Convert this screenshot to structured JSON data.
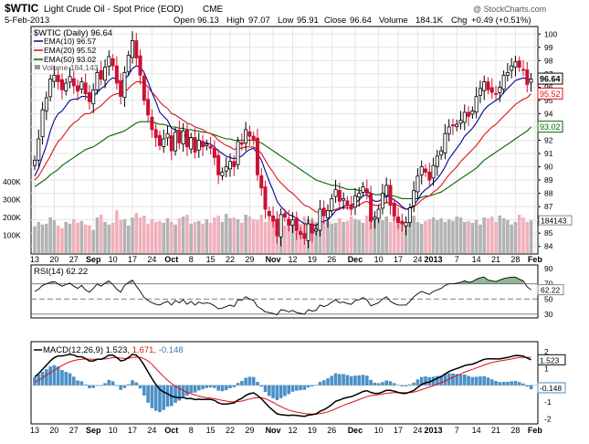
{
  "header": {
    "symbol": "$WTIC",
    "name": "Light Crude Oil - Spot Price (EOD)",
    "exchange": "CME",
    "date": "5-Feb-2013",
    "open_label": "Open",
    "open": "96.13",
    "high_label": "High",
    "high": "97.07",
    "low_label": "Low",
    "low": "95.91",
    "close_label": "Close",
    "close": "96.64",
    "volume_label": "Volume",
    "volume": "184.1K",
    "chg_label": "Chg",
    "chg": "+0.49 (+0.51%)",
    "watermark": "@ StockCharts.com"
  },
  "legend": {
    "main": "$WTIC (Daily) 96.64",
    "ema10": "EMA(10) 96.57",
    "ema20": "EMA(20) 95.52",
    "ema50": "EMA(50) 93.02",
    "volume": "Volume 184,143"
  },
  "colors": {
    "up": "#000000",
    "down": "#cc1133",
    "ema10": "#000099",
    "ema20": "#dd1111",
    "ema50": "#006600",
    "vol_up": "#b3b3b3",
    "vol_down": "#f0b0bb",
    "macd": "#000000",
    "signal": "#dd1111",
    "hist": "#4a90c8",
    "rsi": "#000000"
  },
  "chart_data": [
    {
      "type": "candlestick",
      "title": "$WTIC (Daily) 96.64",
      "ylim": [
        83.5,
        100.5
      ],
      "y_ticks": [
        "84",
        "85",
        "86",
        "87",
        "88",
        "89",
        "90",
        "91",
        "92",
        "93",
        "94",
        "95",
        "96",
        "97",
        "98",
        "99",
        "100"
      ],
      "price_tags": [
        "96.64",
        "95.52",
        "93.02"
      ],
      "x_ticks": [
        "13",
        "20",
        "27",
        "Sep",
        "10",
        "17",
        "24",
        "Oct",
        "8",
        "15",
        "22",
        "29",
        "Nov",
        "12",
        "19",
        "26",
        "Dec",
        "10",
        "17",
        "24",
        "2013",
        "7",
        "14",
        "21",
        "28",
        "Feb"
      ],
      "volume_ticks": [
        "400K",
        "300K",
        "200K",
        "100K"
      ],
      "volume_tag": "184143",
      "close": [
        90.5,
        92.1,
        94.3,
        95.2,
        96.6,
        96.9,
        96.4,
        95.8,
        96.3,
        96.8,
        96.1,
        95.7,
        96.4,
        95.5,
        94.9,
        95.8,
        97.1,
        96.6,
        97.5,
        98.3,
        97.6,
        96.3,
        95.3,
        97.1,
        98.4,
        99.5,
        98.2,
        96.9,
        95.0,
        93.9,
        92.8,
        92.2,
        91.6,
        92.1,
        92.5,
        91.2,
        92.6,
        91.8,
        92.7,
        91.5,
        92.2,
        91.1,
        92.0,
        91.5,
        91.7,
        91.4,
        90.7,
        89.4,
        89.6,
        90.0,
        90.4,
        90.0,
        91.9,
        91.7,
        92.8,
        92.3,
        92.0,
        89.4,
        88.4,
        86.8,
        86.3,
        85.9,
        84.8,
        86.4,
        86.2,
        85.6,
        86.0,
        85.2,
        84.9,
        84.6,
        85.7,
        85.0,
        85.3,
        86.8,
        86.3,
        86.7,
        87.6,
        88.3,
        87.4,
        87.6,
        87.1,
        86.8,
        87.8,
        88.0,
        88.5,
        88.0,
        85.9,
        86.2,
        86.8,
        88.0,
        88.6,
        87.1,
        86.3,
        85.8,
        85.7,
        85.8,
        86.9,
        88.2,
        89.3,
        90.0,
        89.6,
        89.0,
        90.1,
        90.8,
        91.2,
        92.5,
        93.0,
        93.1,
        93.2,
        93.5,
        94.1,
        93.8,
        94.2,
        95.3,
        95.9,
        96.4,
        95.8,
        95.6,
        95.5,
        96.0,
        96.9,
        97.1,
        97.6,
        97.9,
        97.5,
        97.3,
        96.2,
        96.6
      ],
      "volume_k": [
        150,
        175,
        160,
        165,
        200,
        185,
        155,
        140,
        175,
        165,
        190,
        170,
        180,
        160,
        155,
        130,
        200,
        215,
        175,
        160,
        170,
        240,
        185,
        190,
        155,
        200,
        225,
        200,
        210,
        165,
        190,
        175,
        180,
        170,
        195,
        175,
        160,
        195,
        205,
        215,
        165,
        175,
        180,
        165,
        190,
        170,
        200,
        210,
        175,
        220,
        195,
        200,
        190,
        170,
        215,
        205,
        190,
        185,
        215,
        175,
        180,
        185,
        175,
        165,
        155,
        200,
        185,
        170,
        165,
        205,
        190,
        185,
        175,
        185,
        175,
        180,
        165,
        170,
        195,
        175,
        180,
        205,
        190,
        185,
        170,
        210,
        195,
        200,
        190,
        185,
        205,
        175,
        215,
        180,
        185,
        170,
        190,
        210,
        175,
        165,
        180,
        190,
        200,
        185,
        195,
        175,
        190,
        180,
        205,
        200,
        175,
        180,
        170,
        185,
        160,
        200,
        195,
        205,
        175,
        210,
        195,
        185,
        160,
        175,
        215,
        200,
        175,
        184
      ],
      "ema10": [
        89.3,
        89.9,
        90.8,
        91.6,
        92.7,
        93.5,
        94.0,
        94.2,
        94.6,
        95.0,
        95.1,
        95.1,
        95.3,
        95.3,
        95.2,
        95.3,
        95.6,
        95.9,
        96.1,
        96.5,
        96.7,
        96.6,
        96.4,
        96.6,
        96.9,
        97.4,
        97.6,
        97.5,
        97.1,
        96.4,
        95.6,
        94.9,
        94.1,
        93.8,
        93.5,
        92.9,
        92.8,
        92.6,
        92.5,
        92.2,
        92.2,
        92.0,
        91.9,
        91.8,
        91.8,
        91.7,
        91.5,
        91.2,
        91.0,
        90.8,
        90.7,
        90.6,
        90.7,
        90.8,
        91.1,
        91.3,
        91.4,
        91.0,
        90.5,
        89.7,
        88.9,
        88.2,
        87.4,
        87.0,
        86.7,
        86.4,
        86.3,
        86.1,
        85.9,
        85.7,
        85.7,
        85.6,
        85.6,
        85.8,
        85.9,
        86.0,
        86.3,
        86.7,
        86.8,
        87.0,
        87.1,
        87.1,
        87.3,
        87.5,
        87.8,
        87.9,
        87.6,
        87.4,
        87.4,
        87.6,
        87.8,
        87.7,
        87.5,
        87.3,
        87.0,
        86.8,
        86.9,
        87.1,
        87.5,
        88.0,
        88.3,
        88.5,
        88.8,
        89.1,
        89.5,
        90.0,
        90.6,
        91.0,
        91.4,
        91.8,
        92.3,
        92.6,
        92.9,
        93.3,
        93.8,
        94.3,
        94.6,
        94.8,
        95.0,
        95.2,
        95.6,
        95.9,
        96.2,
        96.5,
        96.6,
        96.7,
        96.6,
        96.6
      ],
      "ema20": [
        89.0,
        89.3,
        89.8,
        90.3,
        90.8,
        91.4,
        91.9,
        92.2,
        92.6,
        93.0,
        93.3,
        93.5,
        93.8,
        94.0,
        94.0,
        94.2,
        94.4,
        94.6,
        94.9,
        95.2,
        95.4,
        95.5,
        95.5,
        95.6,
        95.9,
        96.2,
        96.4,
        96.4,
        96.3,
        96.0,
        95.6,
        95.3,
        94.9,
        94.6,
        94.4,
        94.0,
        93.9,
        93.7,
        93.5,
        93.3,
        93.2,
        93.0,
        92.9,
        92.8,
        92.6,
        92.5,
        92.3,
        92.0,
        91.8,
        91.6,
        91.5,
        91.3,
        91.4,
        91.4,
        91.5,
        91.5,
        91.5,
        91.3,
        91.0,
        90.5,
        90.0,
        89.6,
        89.1,
        88.8,
        88.5,
        88.2,
        88.0,
        87.7,
        87.4,
        87.1,
        87.0,
        86.8,
        86.6,
        86.6,
        86.6,
        86.6,
        86.7,
        86.8,
        86.9,
        86.9,
        86.9,
        86.9,
        87.0,
        87.1,
        87.3,
        87.4,
        87.2,
        87.1,
        87.1,
        87.2,
        87.3,
        87.3,
        87.2,
        87.1,
        86.9,
        86.8,
        86.8,
        87.0,
        87.2,
        87.5,
        87.7,
        87.8,
        88.1,
        88.3,
        88.6,
        89.0,
        89.4,
        89.7,
        90.0,
        90.4,
        90.7,
        91.0,
        91.3,
        91.6,
        92.0,
        92.4,
        92.7,
        93.0,
        93.2,
        93.5,
        93.8,
        94.1,
        94.4,
        94.7,
        94.9,
        95.1,
        95.2,
        95.5
      ],
      "ema50": [
        88.5,
        88.7,
        88.9,
        89.1,
        89.4,
        89.6,
        89.8,
        90.1,
        90.3,
        90.5,
        90.7,
        90.9,
        91.1,
        91.3,
        91.4,
        91.5,
        91.7,
        91.9,
        92.1,
        92.3,
        92.4,
        92.5,
        92.6,
        92.7,
        92.9,
        93.1,
        93.3,
        93.4,
        93.4,
        93.4,
        93.4,
        93.3,
        93.2,
        93.2,
        93.1,
        93.0,
        93.0,
        92.9,
        92.9,
        92.8,
        92.8,
        92.7,
        92.7,
        92.6,
        92.6,
        92.5,
        92.4,
        92.3,
        92.2,
        92.1,
        92.1,
        92.0,
        92.0,
        92.0,
        92.0,
        92.0,
        92.0,
        91.9,
        91.8,
        91.6,
        91.4,
        91.2,
        91.0,
        90.8,
        90.6,
        90.4,
        90.2,
        90.0,
        89.8,
        89.6,
        89.4,
        89.2,
        89.0,
        88.9,
        88.8,
        88.7,
        88.6,
        88.6,
        88.5,
        88.4,
        88.3,
        88.3,
        88.3,
        88.2,
        88.2,
        88.2,
        88.0,
        87.9,
        87.9,
        87.9,
        87.9,
        87.8,
        87.8,
        87.7,
        87.6,
        87.6,
        87.6,
        87.6,
        87.6,
        87.7,
        87.8,
        87.8,
        87.9,
        88.0,
        88.1,
        88.3,
        88.5,
        88.7,
        88.9,
        89.1,
        89.3,
        89.5,
        89.7,
        89.9,
        90.2,
        90.5,
        90.7,
        90.9,
        91.1,
        91.3,
        91.5,
        91.7,
        91.9,
        92.1,
        92.3,
        92.5,
        92.7,
        93.0
      ]
    },
    {
      "type": "line",
      "title": "RSI(14) 62.22",
      "ylim": [
        25,
        95
      ],
      "y_ticks": [
        "90",
        "70",
        "50",
        "30"
      ],
      "value_tag": "62.22",
      "rsi": [
        60,
        63,
        68,
        70,
        72,
        73,
        70,
        67,
        69,
        71,
        67,
        64,
        68,
        62,
        59,
        64,
        70,
        67,
        71,
        74,
        69,
        63,
        59,
        68,
        72,
        75,
        67,
        60,
        52,
        48,
        45,
        43,
        42,
        45,
        47,
        42,
        48,
        45,
        49,
        43,
        47,
        42,
        46,
        44,
        45,
        44,
        41,
        37,
        38,
        40,
        42,
        40,
        49,
        48,
        53,
        50,
        48,
        40,
        37,
        33,
        32,
        31,
        29,
        36,
        35,
        33,
        35,
        32,
        31,
        30,
        36,
        34,
        35,
        42,
        40,
        42,
        46,
        49,
        45,
        46,
        44,
        43,
        48,
        49,
        52,
        49,
        41,
        43,
        45,
        50,
        53,
        47,
        44,
        42,
        42,
        42,
        47,
        53,
        57,
        60,
        58,
        56,
        60,
        62,
        64,
        68,
        70,
        70,
        71,
        72,
        74,
        72,
        73,
        76,
        78,
        79,
        75,
        74,
        73,
        75,
        77,
        78,
        79,
        79,
        76,
        74,
        66,
        62
      ]
    },
    {
      "type": "line",
      "title": "MACD(12,26,9) 1.523, 1.671, -0.148",
      "ylim": [
        -2.3,
        2.6
      ],
      "y_ticks": [
        "2",
        "1",
        "0",
        "-1",
        "-2"
      ],
      "value_tags": [
        "1.523",
        "-0.148"
      ],
      "macd": [
        0.5,
        0.7,
        0.95,
        1.2,
        1.45,
        1.65,
        1.75,
        1.75,
        1.8,
        1.85,
        1.8,
        1.7,
        1.7,
        1.6,
        1.45,
        1.45,
        1.55,
        1.55,
        1.65,
        1.8,
        1.8,
        1.65,
        1.45,
        1.5,
        1.65,
        1.85,
        1.8,
        1.55,
        1.2,
        0.8,
        0.4,
        0.05,
        -0.25,
        -0.4,
        -0.5,
        -0.65,
        -0.7,
        -0.75,
        -0.72,
        -0.8,
        -0.78,
        -0.85,
        -0.83,
        -0.85,
        -0.83,
        -0.84,
        -0.9,
        -1.05,
        -1.12,
        -1.12,
        -1.08,
        -1.05,
        -0.88,
        -0.78,
        -0.6,
        -0.5,
        -0.45,
        -0.6,
        -0.8,
        -1.05,
        -1.3,
        -1.5,
        -1.7,
        -1.75,
        -1.78,
        -1.8,
        -1.78,
        -1.8,
        -1.82,
        -1.85,
        -1.78,
        -1.75,
        -1.7,
        -1.55,
        -1.45,
        -1.32,
        -1.15,
        -0.95,
        -0.88,
        -0.78,
        -0.72,
        -0.68,
        -0.58,
        -0.48,
        -0.37,
        -0.32,
        -0.42,
        -0.48,
        -0.48,
        -0.4,
        -0.3,
        -0.3,
        -0.35,
        -0.42,
        -0.48,
        -0.48,
        -0.4,
        -0.3,
        -0.12,
        0.05,
        0.15,
        0.2,
        0.3,
        0.42,
        0.52,
        0.68,
        0.82,
        0.92,
        1.0,
        1.08,
        1.18,
        1.22,
        1.26,
        1.35,
        1.45,
        1.55,
        1.58,
        1.58,
        1.57,
        1.57,
        1.62,
        1.66,
        1.72,
        1.78,
        1.77,
        1.74,
        1.62,
        1.52
      ],
      "signal": [
        0.2,
        0.3,
        0.45,
        0.6,
        0.75,
        0.9,
        1.05,
        1.18,
        1.3,
        1.4,
        1.48,
        1.52,
        1.55,
        1.57,
        1.56,
        1.55,
        1.55,
        1.55,
        1.57,
        1.6,
        1.65,
        1.65,
        1.62,
        1.6,
        1.61,
        1.66,
        1.69,
        1.67,
        1.58,
        1.45,
        1.25,
        1.0,
        0.75,
        0.52,
        0.3,
        0.12,
        -0.05,
        -0.18,
        -0.3,
        -0.42,
        -0.5,
        -0.58,
        -0.64,
        -0.7,
        -0.73,
        -0.76,
        -0.8,
        -0.85,
        -0.9,
        -0.94,
        -0.97,
        -0.98,
        -0.97,
        -0.94,
        -0.88,
        -0.82,
        -0.76,
        -0.73,
        -0.75,
        -0.8,
        -0.9,
        -1.02,
        -1.15,
        -1.27,
        -1.38,
        -1.47,
        -1.54,
        -1.6,
        -1.64,
        -1.68,
        -1.7,
        -1.71,
        -1.71,
        -1.68,
        -1.64,
        -1.58,
        -1.5,
        -1.4,
        -1.3,
        -1.2,
        -1.1,
        -1.02,
        -0.94,
        -0.85,
        -0.76,
        -0.68,
        -0.62,
        -0.58,
        -0.56,
        -0.52,
        -0.48,
        -0.45,
        -0.43,
        -0.43,
        -0.44,
        -0.44,
        -0.43,
        -0.4,
        -0.34,
        -0.26,
        -0.18,
        -0.1,
        -0.02,
        0.07,
        0.16,
        0.26,
        0.37,
        0.48,
        0.58,
        0.68,
        0.78,
        0.87,
        0.95,
        1.03,
        1.12,
        1.21,
        1.29,
        1.36,
        1.41,
        1.45,
        1.49,
        1.53,
        1.57,
        1.62,
        1.65,
        1.67,
        1.67,
        1.67
      ]
    }
  ]
}
